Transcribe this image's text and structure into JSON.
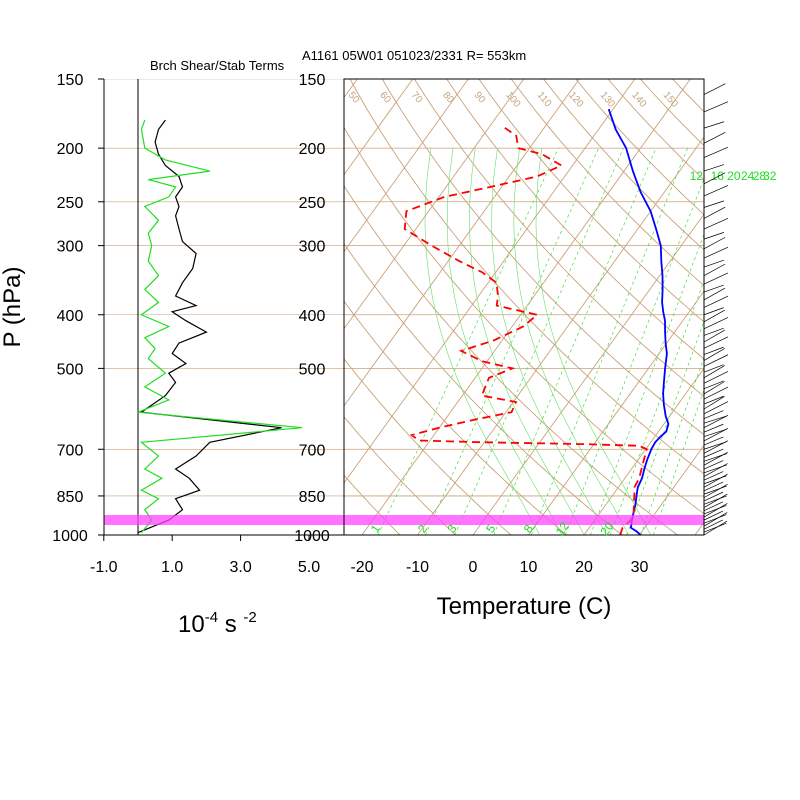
{
  "header": {
    "panel_title": "Brch Shear/Stab Terms",
    "main_title": "A1161 05W01 051023/2331 R= 553km"
  },
  "left_axis": {
    "label": "P (hPa)",
    "ticks": [
      "150",
      "200",
      "250",
      "300",
      "400",
      "500",
      "700",
      "850",
      "1000"
    ],
    "tick_values": [
      150,
      200,
      250,
      300,
      400,
      500,
      700,
      850,
      1000
    ]
  },
  "shear_panel": {
    "x_ticks": [
      "-1.0",
      "1.0",
      "3.0",
      "5.0"
    ],
    "x_tick_values": [
      -1,
      1,
      3,
      5
    ],
    "xlim": [
      -1,
      5.0
    ],
    "unit_base": "10",
    "unit_exp1": "-4",
    "unit_mid": " s ",
    "unit_exp2": "-2"
  },
  "skewt_panel": {
    "x_ticks": [
      "-20",
      "-10",
      "0",
      "10",
      "20",
      "30"
    ],
    "x_tick_values": [
      -20,
      -10,
      0,
      10,
      20,
      30
    ],
    "xlabel": "Temperature (C)",
    "mixing_ratio_top_labels": [
      "12",
      "16",
      "20",
      "24",
      "28",
      "32"
    ],
    "mixing_ratio_bottom_labels": [
      "1",
      "2",
      "3",
      "5",
      "8",
      "12",
      "20"
    ],
    "adiabat_labels": [
      "50",
      "60",
      "70",
      "80",
      "90",
      "100",
      "110",
      "120",
      "130",
      "140",
      "150"
    ]
  },
  "colors": {
    "temperature": "#0000ff",
    "dewpoint": "#ff0000",
    "shear_black": "#000000",
    "stab_green": "#22dd22",
    "grid": "#c9a27a",
    "highlight": "#ff44ff"
  },
  "chart_data": [
    {
      "type": "line",
      "title": "Brch Shear/Stab Terms",
      "series": [
        {
          "color": "black",
          "points": [
            [
              0.8,
              178
            ],
            [
              0.6,
              185
            ],
            [
              0.5,
              195
            ],
            [
              0.6,
              205
            ],
            [
              0.8,
              215
            ],
            [
              1.2,
              225
            ],
            [
              1.3,
              235
            ],
            [
              1.1,
              245
            ],
            [
              1.2,
              255
            ],
            [
              1.1,
              265
            ],
            [
              1.2,
              280
            ],
            [
              1.3,
              295
            ],
            [
              1.7,
              310
            ],
            [
              1.6,
              330
            ],
            [
              1.3,
              350
            ],
            [
              1.1,
              370
            ],
            [
              1.7,
              385
            ],
            [
              1.0,
              395
            ],
            [
              1.4,
              410
            ],
            [
              2.0,
              430
            ],
            [
              1.2,
              450
            ],
            [
              1.0,
              470
            ],
            [
              1.4,
              490
            ],
            [
              0.9,
              510
            ],
            [
              1.1,
              530
            ],
            [
              0.8,
              560
            ],
            [
              0.1,
              600
            ],
            [
              4.2,
              640
            ],
            [
              2.1,
              680
            ],
            [
              1.7,
              720
            ],
            [
              1.1,
              760
            ],
            [
              1.5,
              790
            ],
            [
              1.8,
              830
            ],
            [
              1.1,
              860
            ],
            [
              1.3,
              900
            ],
            [
              0.9,
              940
            ],
            [
              0.0,
              990
            ]
          ]
        },
        {
          "color": "green",
          "points": [
            [
              0.2,
              178
            ],
            [
              0.1,
              185
            ],
            [
              0.2,
              200
            ],
            [
              0.8,
              210
            ],
            [
              2.1,
              220
            ],
            [
              0.3,
              228
            ],
            [
              1.1,
              235
            ],
            [
              0.9,
              245
            ],
            [
              0.2,
              255
            ],
            [
              0.6,
              270
            ],
            [
              0.3,
              285
            ],
            [
              0.4,
              300
            ],
            [
              0.3,
              320
            ],
            [
              0.6,
              340
            ],
            [
              0.2,
              360
            ],
            [
              0.6,
              380
            ],
            [
              0.1,
              400
            ],
            [
              0.9,
              420
            ],
            [
              0.2,
              440
            ],
            [
              0.5,
              460
            ],
            [
              0.3,
              480
            ],
            [
              0.8,
              510
            ],
            [
              0.2,
              540
            ],
            [
              0.9,
              570
            ],
            [
              0.0,
              600
            ],
            [
              4.8,
              640
            ],
            [
              0.1,
              680
            ],
            [
              0.6,
              720
            ],
            [
              0.2,
              760
            ],
            [
              0.7,
              790
            ],
            [
              0.1,
              830
            ],
            [
              0.6,
              860
            ],
            [
              0.2,
              900
            ],
            [
              0.4,
              940
            ],
            [
              0.1,
              990
            ]
          ]
        }
      ],
      "xlim": [
        -1,
        5.0
      ],
      "ylim": [
        1000,
        150
      ],
      "y_scale": "log"
    },
    {
      "type": "line",
      "xlabel": "Temperature (C)",
      "series": [
        {
          "color": "blue",
          "points": [
            [
              30.2,
              1000
            ],
            [
              29.0,
              985
            ],
            [
              27.5,
              970
            ],
            [
              26.7,
              940
            ],
            [
              26.0,
              910
            ],
            [
              25.3,
              880
            ],
            [
              24.4,
              850
            ],
            [
              23.5,
              820
            ],
            [
              23.1,
              790
            ],
            [
              22.3,
              760
            ],
            [
              21.6,
              730
            ],
            [
              21.0,
              700
            ],
            [
              20.8,
              680
            ],
            [
              21.0,
              665
            ],
            [
              21.4,
              650
            ],
            [
              20.8,
              630
            ],
            [
              19.3,
              610
            ],
            [
              17.4,
              580
            ],
            [
              15.9,
              555
            ],
            [
              14.6,
              530
            ],
            [
              13.0,
              500
            ],
            [
              11.4,
              470
            ],
            [
              9.8,
              450
            ],
            [
              8.3,
              430
            ],
            [
              6.8,
              410
            ],
            [
              5.3,
              395
            ],
            [
              3.9,
              380
            ],
            [
              2.3,
              360
            ],
            [
              0.5,
              340
            ],
            [
              -1.6,
              320
            ],
            [
              -3.7,
              300
            ],
            [
              -6.7,
              280
            ],
            [
              -10.0,
              260
            ],
            [
              -14.3,
              240
            ],
            [
              -18.4,
              220
            ],
            [
              -22.6,
              200
            ],
            [
              -26.9,
              185
            ],
            [
              -30.8,
              170
            ]
          ]
        },
        {
          "color": "red",
          "points": [
            [
              26.5,
              1000
            ],
            [
              26.0,
              970
            ],
            [
              26.5,
              940
            ],
            [
              26.0,
              910
            ],
            [
              25.0,
              880
            ],
            [
              24.0,
              850
            ],
            [
              22.9,
              820
            ],
            [
              22.6,
              790
            ],
            [
              21.8,
              760
            ],
            [
              21.0,
              730
            ],
            [
              20.2,
              700
            ],
            [
              18.4,
              690
            ],
            [
              8.0,
              685
            ],
            [
              -10.0,
              680
            ],
            [
              -22.0,
              675
            ],
            [
              -24.0,
              660
            ],
            [
              -20.0,
              640
            ],
            [
              -15.0,
              620
            ],
            [
              -9.0,
              600
            ],
            [
              -9.5,
              575
            ],
            [
              -16.5,
              560
            ],
            [
              -17.0,
              540
            ],
            [
              -17.5,
              520
            ],
            [
              -14.5,
              500
            ],
            [
              -21.0,
              485
            ],
            [
              -26.0,
              465
            ],
            [
              -21.5,
              445
            ],
            [
              -18.0,
              420
            ],
            [
              -17.0,
              400
            ],
            [
              -25.5,
              385
            ],
            [
              -26.5,
              370
            ],
            [
              -28.5,
              350
            ],
            [
              -32.5,
              335
            ],
            [
              -38.0,
              320
            ],
            [
              -45.0,
              300
            ],
            [
              -52.0,
              280
            ],
            [
              -54.0,
              260
            ],
            [
              -49.0,
              245
            ],
            [
              -42.0,
              235
            ],
            [
              -35.0,
              225
            ],
            [
              -32.0,
              215
            ],
            [
              -37.0,
              205
            ],
            [
              -42.0,
              200
            ],
            [
              -44.0,
              190
            ],
            [
              -48.0,
              182
            ]
          ]
        }
      ],
      "xlim": [
        -20,
        38
      ],
      "ylim": [
        1000,
        150
      ],
      "x_ticks": [
        -20,
        -10,
        0,
        10,
        20,
        30
      ],
      "y_scale": "log",
      "skewed": true
    }
  ]
}
